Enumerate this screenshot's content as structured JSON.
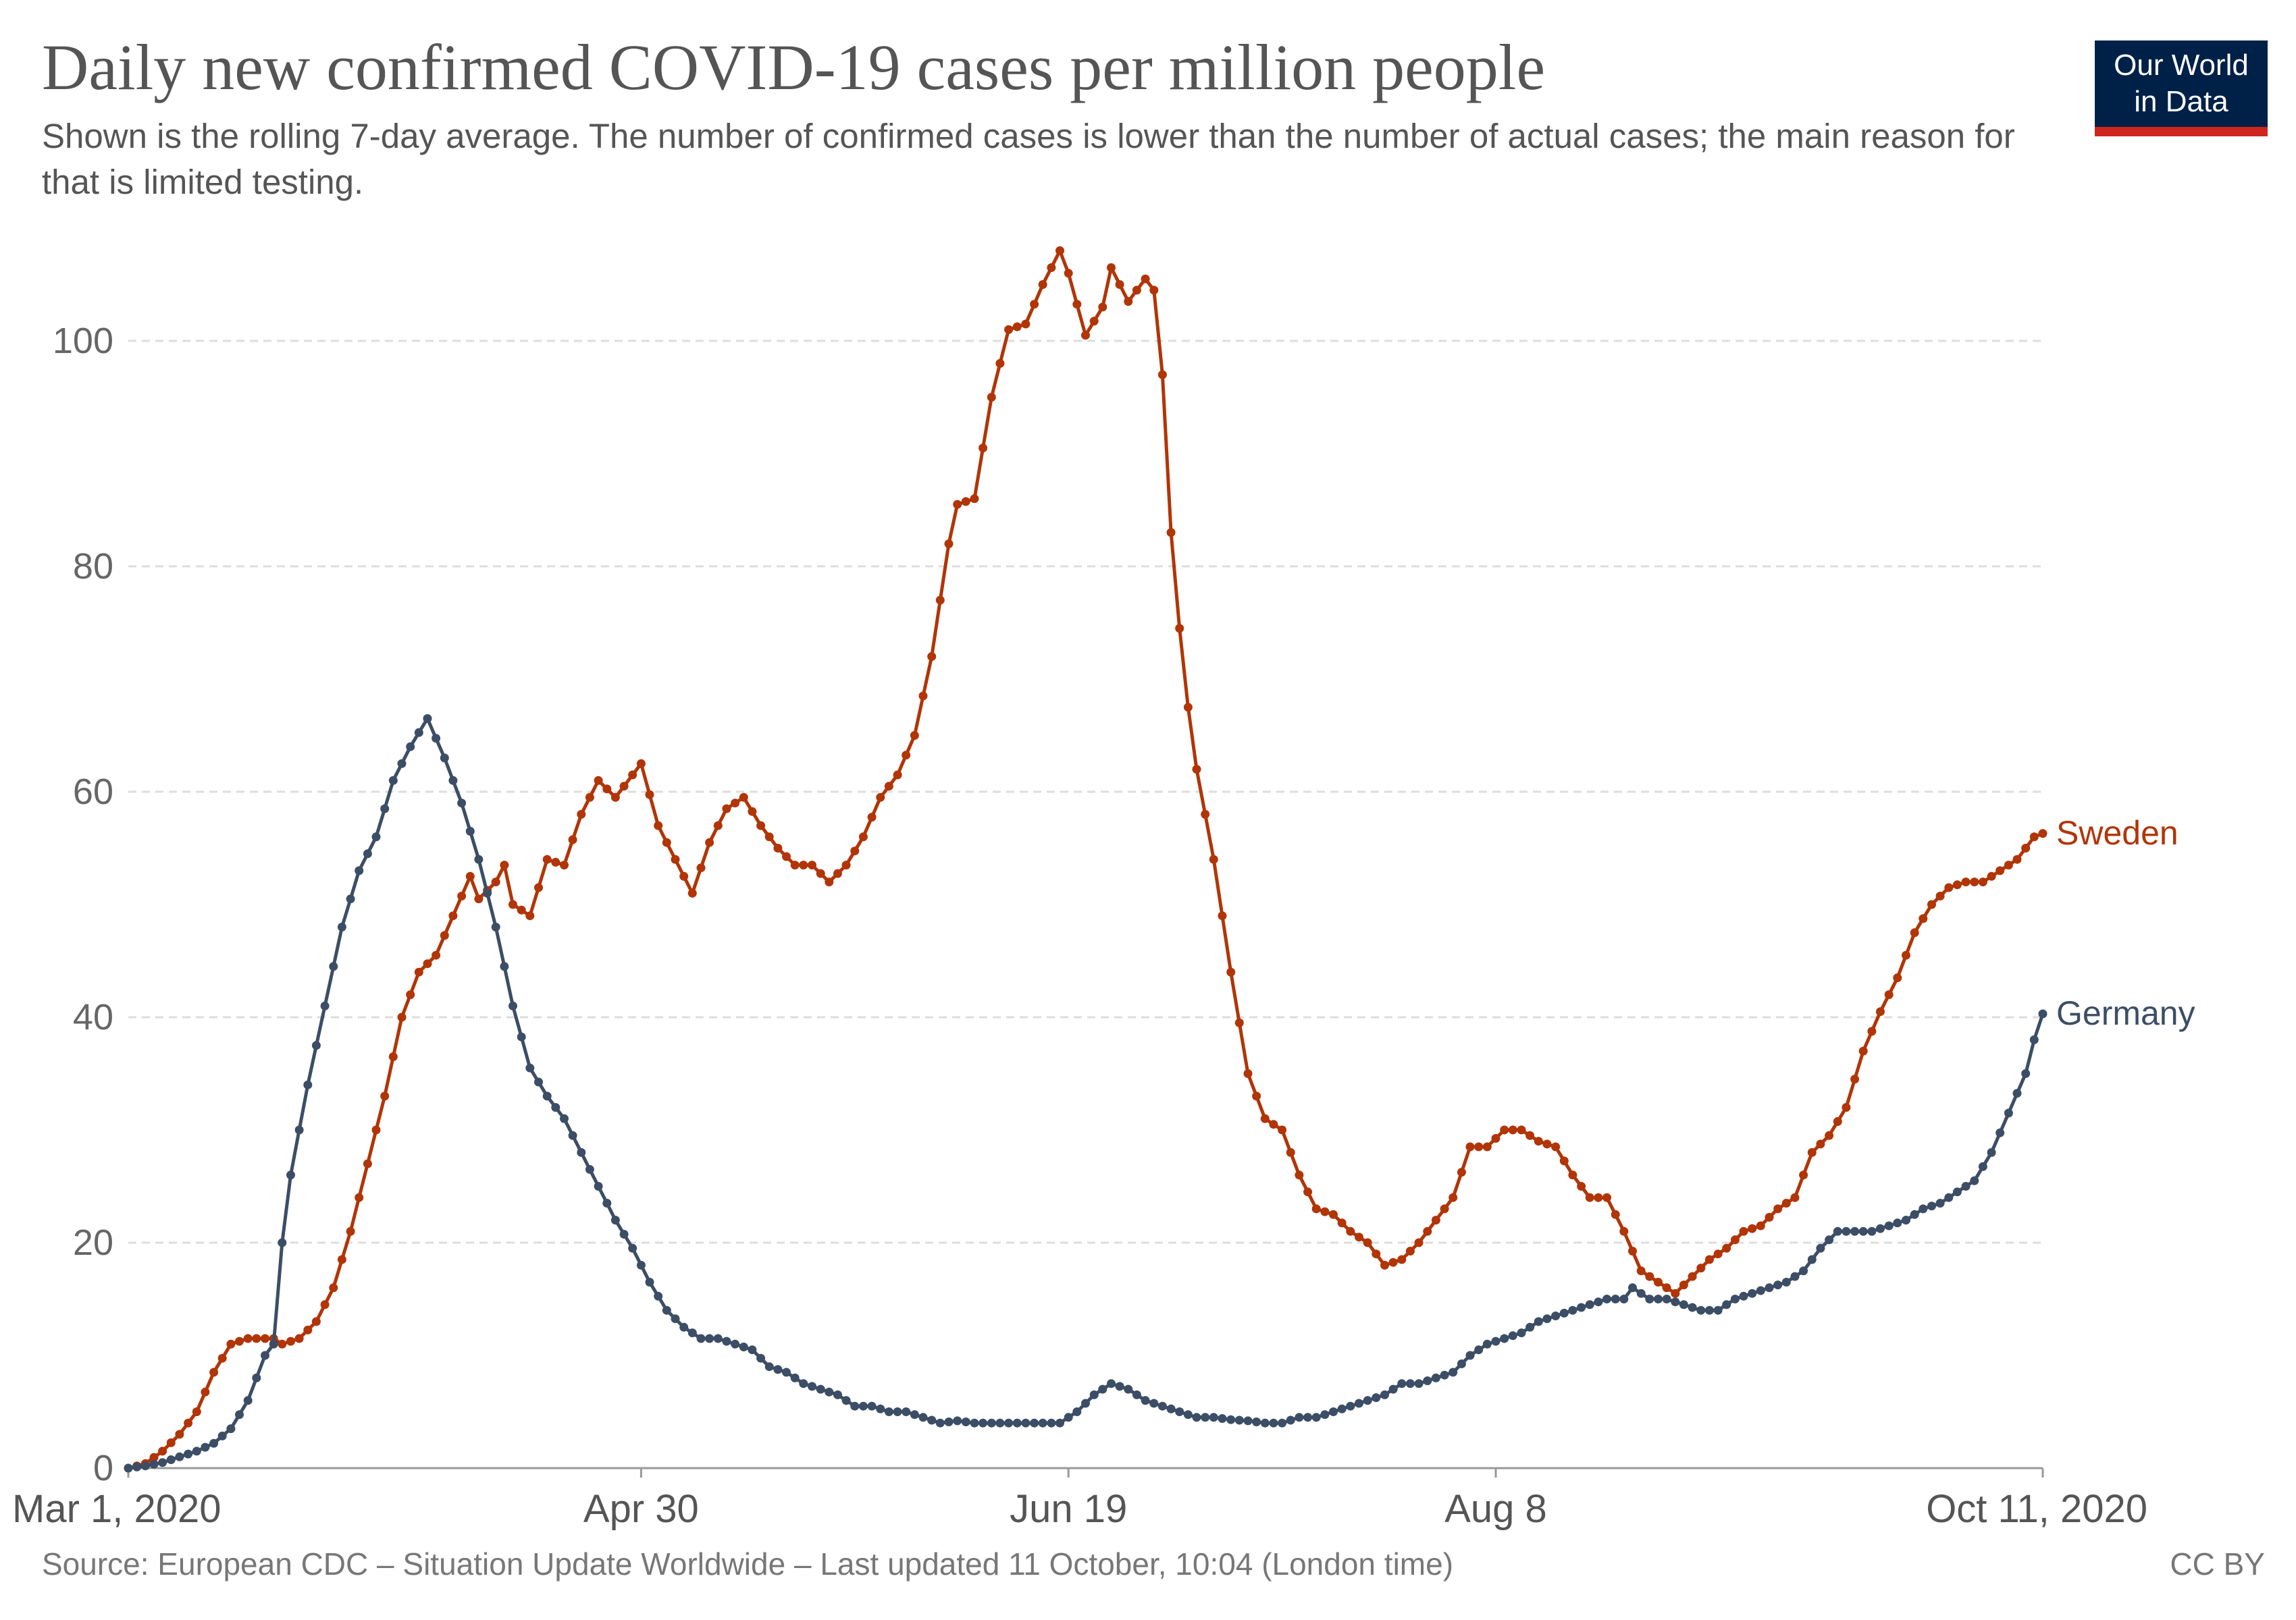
{
  "header": {
    "title": "Daily new confirmed COVID-19 cases per million people",
    "subtitle": "Shown is the rolling 7-day average. The number of confirmed cases is lower than the number of actual cases; the main reason for that is limited testing."
  },
  "logo": {
    "line1": "Our World",
    "line2": "in Data"
  },
  "footer": {
    "source": "Source: European CDC – Situation Update Worldwide – Last updated 11 October, 10:04 (London time)",
    "license": "CC BY"
  },
  "colors": {
    "sweden": "#b13507",
    "germany": "#3c4e66",
    "grid": "#dddddd",
    "text": "#555555"
  },
  "chart_data": {
    "type": "line",
    "x_type": "date",
    "xlim": [
      "2020-03-01",
      "2020-10-11"
    ],
    "ylim": [
      0,
      108
    ],
    "grid": "horizontal dashed",
    "yticks": [
      0,
      20,
      40,
      60,
      80,
      100
    ],
    "xticks": [
      {
        "date": "2020-03-01",
        "label": "Mar 1, 2020"
      },
      {
        "date": "2020-04-30",
        "label": "Apr 30"
      },
      {
        "date": "2020-06-19",
        "label": "Jun 19"
      },
      {
        "date": "2020-08-08",
        "label": "Aug 8"
      },
      {
        "date": "2020-10-11",
        "label": "Oct 11, 2020"
      }
    ],
    "legend": "inline labels at line ends",
    "series": [
      {
        "name": "Sweden",
        "color": "#b13507",
        "points": [
          [
            "2020-03-01",
            0
          ],
          [
            "2020-03-03",
            0.4
          ],
          [
            "2020-03-05",
            1.5
          ],
          [
            "2020-03-07",
            3
          ],
          [
            "2020-03-09",
            5
          ],
          [
            "2020-03-11",
            8.5
          ],
          [
            "2020-03-13",
            11
          ],
          [
            "2020-03-15",
            11.5
          ],
          [
            "2020-03-17",
            11.5
          ],
          [
            "2020-03-18",
            11.5
          ],
          [
            "2020-03-19",
            11
          ],
          [
            "2020-03-21",
            11.5
          ],
          [
            "2020-03-23",
            13
          ],
          [
            "2020-03-25",
            16
          ],
          [
            "2020-03-27",
            21
          ],
          [
            "2020-03-29",
            27
          ],
          [
            "2020-03-31",
            33
          ],
          [
            "2020-04-02",
            40
          ],
          [
            "2020-04-04",
            44
          ],
          [
            "2020-04-06",
            45.5
          ],
          [
            "2020-04-08",
            49
          ],
          [
            "2020-04-10",
            52.5
          ],
          [
            "2020-04-11",
            50.5
          ],
          [
            "2020-04-13",
            52
          ],
          [
            "2020-04-14",
            53.5
          ],
          [
            "2020-04-15",
            50
          ],
          [
            "2020-04-17",
            49
          ],
          [
            "2020-04-19",
            54
          ],
          [
            "2020-04-21",
            53.5
          ],
          [
            "2020-04-23",
            58
          ],
          [
            "2020-04-25",
            61
          ],
          [
            "2020-04-27",
            59.5
          ],
          [
            "2020-04-29",
            61.5
          ],
          [
            "2020-04-30",
            62.5
          ],
          [
            "2020-05-02",
            57
          ],
          [
            "2020-05-04",
            54
          ],
          [
            "2020-05-06",
            51
          ],
          [
            "2020-05-08",
            55.5
          ],
          [
            "2020-05-10",
            58.5
          ],
          [
            "2020-05-12",
            59.5
          ],
          [
            "2020-05-14",
            57
          ],
          [
            "2020-05-16",
            55
          ],
          [
            "2020-05-18",
            53.5
          ],
          [
            "2020-05-20",
            53.5
          ],
          [
            "2020-05-22",
            52
          ],
          [
            "2020-05-24",
            53.5
          ],
          [
            "2020-05-26",
            56
          ],
          [
            "2020-05-28",
            59.5
          ],
          [
            "2020-05-30",
            61.5
          ],
          [
            "2020-06-01",
            65
          ],
          [
            "2020-06-03",
            72
          ],
          [
            "2020-06-05",
            82
          ],
          [
            "2020-06-06",
            85.5
          ],
          [
            "2020-06-08",
            86
          ],
          [
            "2020-06-10",
            95
          ],
          [
            "2020-06-12",
            101
          ],
          [
            "2020-06-14",
            101.5
          ],
          [
            "2020-06-16",
            105
          ],
          [
            "2020-06-18",
            108
          ],
          [
            "2020-06-19",
            106
          ],
          [
            "2020-06-21",
            100.5
          ],
          [
            "2020-06-23",
            103
          ],
          [
            "2020-06-24",
            106.5
          ],
          [
            "2020-06-26",
            103.5
          ],
          [
            "2020-06-28",
            105.5
          ],
          [
            "2020-06-29",
            104.5
          ],
          [
            "2020-06-30",
            97
          ],
          [
            "2020-07-01",
            83
          ],
          [
            "2020-07-02",
            74.5
          ],
          [
            "2020-07-03",
            67.5
          ],
          [
            "2020-07-04",
            62
          ],
          [
            "2020-07-06",
            54
          ],
          [
            "2020-07-08",
            44
          ],
          [
            "2020-07-10",
            35
          ],
          [
            "2020-07-12",
            31
          ],
          [
            "2020-07-14",
            30
          ],
          [
            "2020-07-16",
            26
          ],
          [
            "2020-07-18",
            23
          ],
          [
            "2020-07-20",
            22.5
          ],
          [
            "2020-07-22",
            21
          ],
          [
            "2020-07-24",
            20
          ],
          [
            "2020-07-26",
            18
          ],
          [
            "2020-07-28",
            18.5
          ],
          [
            "2020-07-30",
            20
          ],
          [
            "2020-08-01",
            22
          ],
          [
            "2020-08-03",
            24
          ],
          [
            "2020-08-05",
            28.5
          ],
          [
            "2020-08-07",
            28.5
          ],
          [
            "2020-08-09",
            30
          ],
          [
            "2020-08-11",
            30
          ],
          [
            "2020-08-13",
            29
          ],
          [
            "2020-08-15",
            28.5
          ],
          [
            "2020-08-17",
            26
          ],
          [
            "2020-08-19",
            24
          ],
          [
            "2020-08-21",
            24
          ],
          [
            "2020-08-23",
            21
          ],
          [
            "2020-08-25",
            17.5
          ],
          [
            "2020-08-27",
            16.5
          ],
          [
            "2020-08-29",
            15.5
          ],
          [
            "2020-08-31",
            17
          ],
          [
            "2020-09-02",
            18.5
          ],
          [
            "2020-09-04",
            19.5
          ],
          [
            "2020-09-06",
            21
          ],
          [
            "2020-09-08",
            21.5
          ],
          [
            "2020-09-10",
            23
          ],
          [
            "2020-09-12",
            24
          ],
          [
            "2020-09-14",
            28
          ],
          [
            "2020-09-16",
            29.5
          ],
          [
            "2020-09-18",
            32
          ],
          [
            "2020-09-20",
            37
          ],
          [
            "2020-09-22",
            40.5
          ],
          [
            "2020-09-24",
            43.5
          ],
          [
            "2020-09-26",
            47.5
          ],
          [
            "2020-09-28",
            50
          ],
          [
            "2020-09-30",
            51.5
          ],
          [
            "2020-10-02",
            52
          ],
          [
            "2020-10-04",
            52
          ],
          [
            "2020-10-06",
            53
          ],
          [
            "2020-10-08",
            54
          ],
          [
            "2020-10-10",
            56
          ],
          [
            "2020-10-11",
            56.3
          ]
        ]
      },
      {
        "name": "Germany",
        "color": "#3c4e66",
        "points": [
          [
            "2020-03-01",
            0
          ],
          [
            "2020-03-03",
            0.2
          ],
          [
            "2020-03-05",
            0.5
          ],
          [
            "2020-03-07",
            1
          ],
          [
            "2020-03-09",
            1.5
          ],
          [
            "2020-03-11",
            2.2
          ],
          [
            "2020-03-13",
            3.5
          ],
          [
            "2020-03-15",
            6
          ],
          [
            "2020-03-17",
            10
          ],
          [
            "2020-03-18",
            11
          ],
          [
            "2020-03-19",
            20
          ],
          [
            "2020-03-20",
            26
          ],
          [
            "2020-03-22",
            34
          ],
          [
            "2020-03-24",
            41
          ],
          [
            "2020-03-26",
            48
          ],
          [
            "2020-03-28",
            53
          ],
          [
            "2020-03-30",
            56
          ],
          [
            "2020-04-01",
            61
          ],
          [
            "2020-04-03",
            64
          ],
          [
            "2020-04-05",
            66.5
          ],
          [
            "2020-04-07",
            63
          ],
          [
            "2020-04-09",
            59
          ],
          [
            "2020-04-11",
            54
          ],
          [
            "2020-04-13",
            48
          ],
          [
            "2020-04-15",
            41
          ],
          [
            "2020-04-17",
            35.5
          ],
          [
            "2020-04-19",
            33
          ],
          [
            "2020-04-21",
            31
          ],
          [
            "2020-04-23",
            28
          ],
          [
            "2020-04-25",
            25
          ],
          [
            "2020-04-27",
            22
          ],
          [
            "2020-04-29",
            19.5
          ],
          [
            "2020-05-01",
            16.5
          ],
          [
            "2020-05-03",
            14
          ],
          [
            "2020-05-05",
            12.5
          ],
          [
            "2020-05-07",
            11.5
          ],
          [
            "2020-05-09",
            11.5
          ],
          [
            "2020-05-11",
            11
          ],
          [
            "2020-05-13",
            10.5
          ],
          [
            "2020-05-15",
            9
          ],
          [
            "2020-05-17",
            8.5
          ],
          [
            "2020-05-19",
            7.5
          ],
          [
            "2020-05-21",
            7
          ],
          [
            "2020-05-23",
            6.5
          ],
          [
            "2020-05-25",
            5.5
          ],
          [
            "2020-05-27",
            5.5
          ],
          [
            "2020-05-29",
            5
          ],
          [
            "2020-05-31",
            5
          ],
          [
            "2020-06-02",
            4.5
          ],
          [
            "2020-06-04",
            4
          ],
          [
            "2020-06-06",
            4.2
          ],
          [
            "2020-06-08",
            4
          ],
          [
            "2020-06-10",
            4
          ],
          [
            "2020-06-12",
            4
          ],
          [
            "2020-06-14",
            4
          ],
          [
            "2020-06-16",
            4
          ],
          [
            "2020-06-18",
            4
          ],
          [
            "2020-06-20",
            5
          ],
          [
            "2020-06-22",
            6.5
          ],
          [
            "2020-06-24",
            7.5
          ],
          [
            "2020-06-26",
            7
          ],
          [
            "2020-06-28",
            6
          ],
          [
            "2020-06-30",
            5.5
          ],
          [
            "2020-07-02",
            5
          ],
          [
            "2020-07-04",
            4.5
          ],
          [
            "2020-07-06",
            4.5
          ],
          [
            "2020-07-08",
            4.3
          ],
          [
            "2020-07-10",
            4.2
          ],
          [
            "2020-07-12",
            4
          ],
          [
            "2020-07-14",
            4
          ],
          [
            "2020-07-16",
            4.5
          ],
          [
            "2020-07-18",
            4.5
          ],
          [
            "2020-07-20",
            5
          ],
          [
            "2020-07-22",
            5.5
          ],
          [
            "2020-07-24",
            6
          ],
          [
            "2020-07-26",
            6.5
          ],
          [
            "2020-07-28",
            7.5
          ],
          [
            "2020-07-30",
            7.5
          ],
          [
            "2020-08-01",
            8
          ],
          [
            "2020-08-03",
            8.5
          ],
          [
            "2020-08-05",
            10
          ],
          [
            "2020-08-07",
            11
          ],
          [
            "2020-08-09",
            11.5
          ],
          [
            "2020-08-11",
            12
          ],
          [
            "2020-08-13",
            13
          ],
          [
            "2020-08-15",
            13.5
          ],
          [
            "2020-08-17",
            14
          ],
          [
            "2020-08-19",
            14.5
          ],
          [
            "2020-08-21",
            15
          ],
          [
            "2020-08-23",
            15
          ],
          [
            "2020-08-24",
            16
          ],
          [
            "2020-08-26",
            15
          ],
          [
            "2020-08-28",
            15
          ],
          [
            "2020-08-30",
            14.5
          ],
          [
            "2020-09-01",
            14
          ],
          [
            "2020-09-03",
            14
          ],
          [
            "2020-09-05",
            15
          ],
          [
            "2020-09-07",
            15.5
          ],
          [
            "2020-09-09",
            16
          ],
          [
            "2020-09-11",
            16.5
          ],
          [
            "2020-09-13",
            17.5
          ],
          [
            "2020-09-15",
            19.5
          ],
          [
            "2020-09-17",
            21
          ],
          [
            "2020-09-19",
            21
          ],
          [
            "2020-09-21",
            21
          ],
          [
            "2020-09-23",
            21.5
          ],
          [
            "2020-09-25",
            22
          ],
          [
            "2020-09-27",
            23
          ],
          [
            "2020-09-29",
            23.5
          ],
          [
            "2020-10-01",
            24.5
          ],
          [
            "2020-10-03",
            25.5
          ],
          [
            "2020-10-05",
            28
          ],
          [
            "2020-10-07",
            31.5
          ],
          [
            "2020-10-09",
            35
          ],
          [
            "2020-10-10",
            38
          ],
          [
            "2020-10-11",
            40.3
          ]
        ]
      }
    ]
  }
}
